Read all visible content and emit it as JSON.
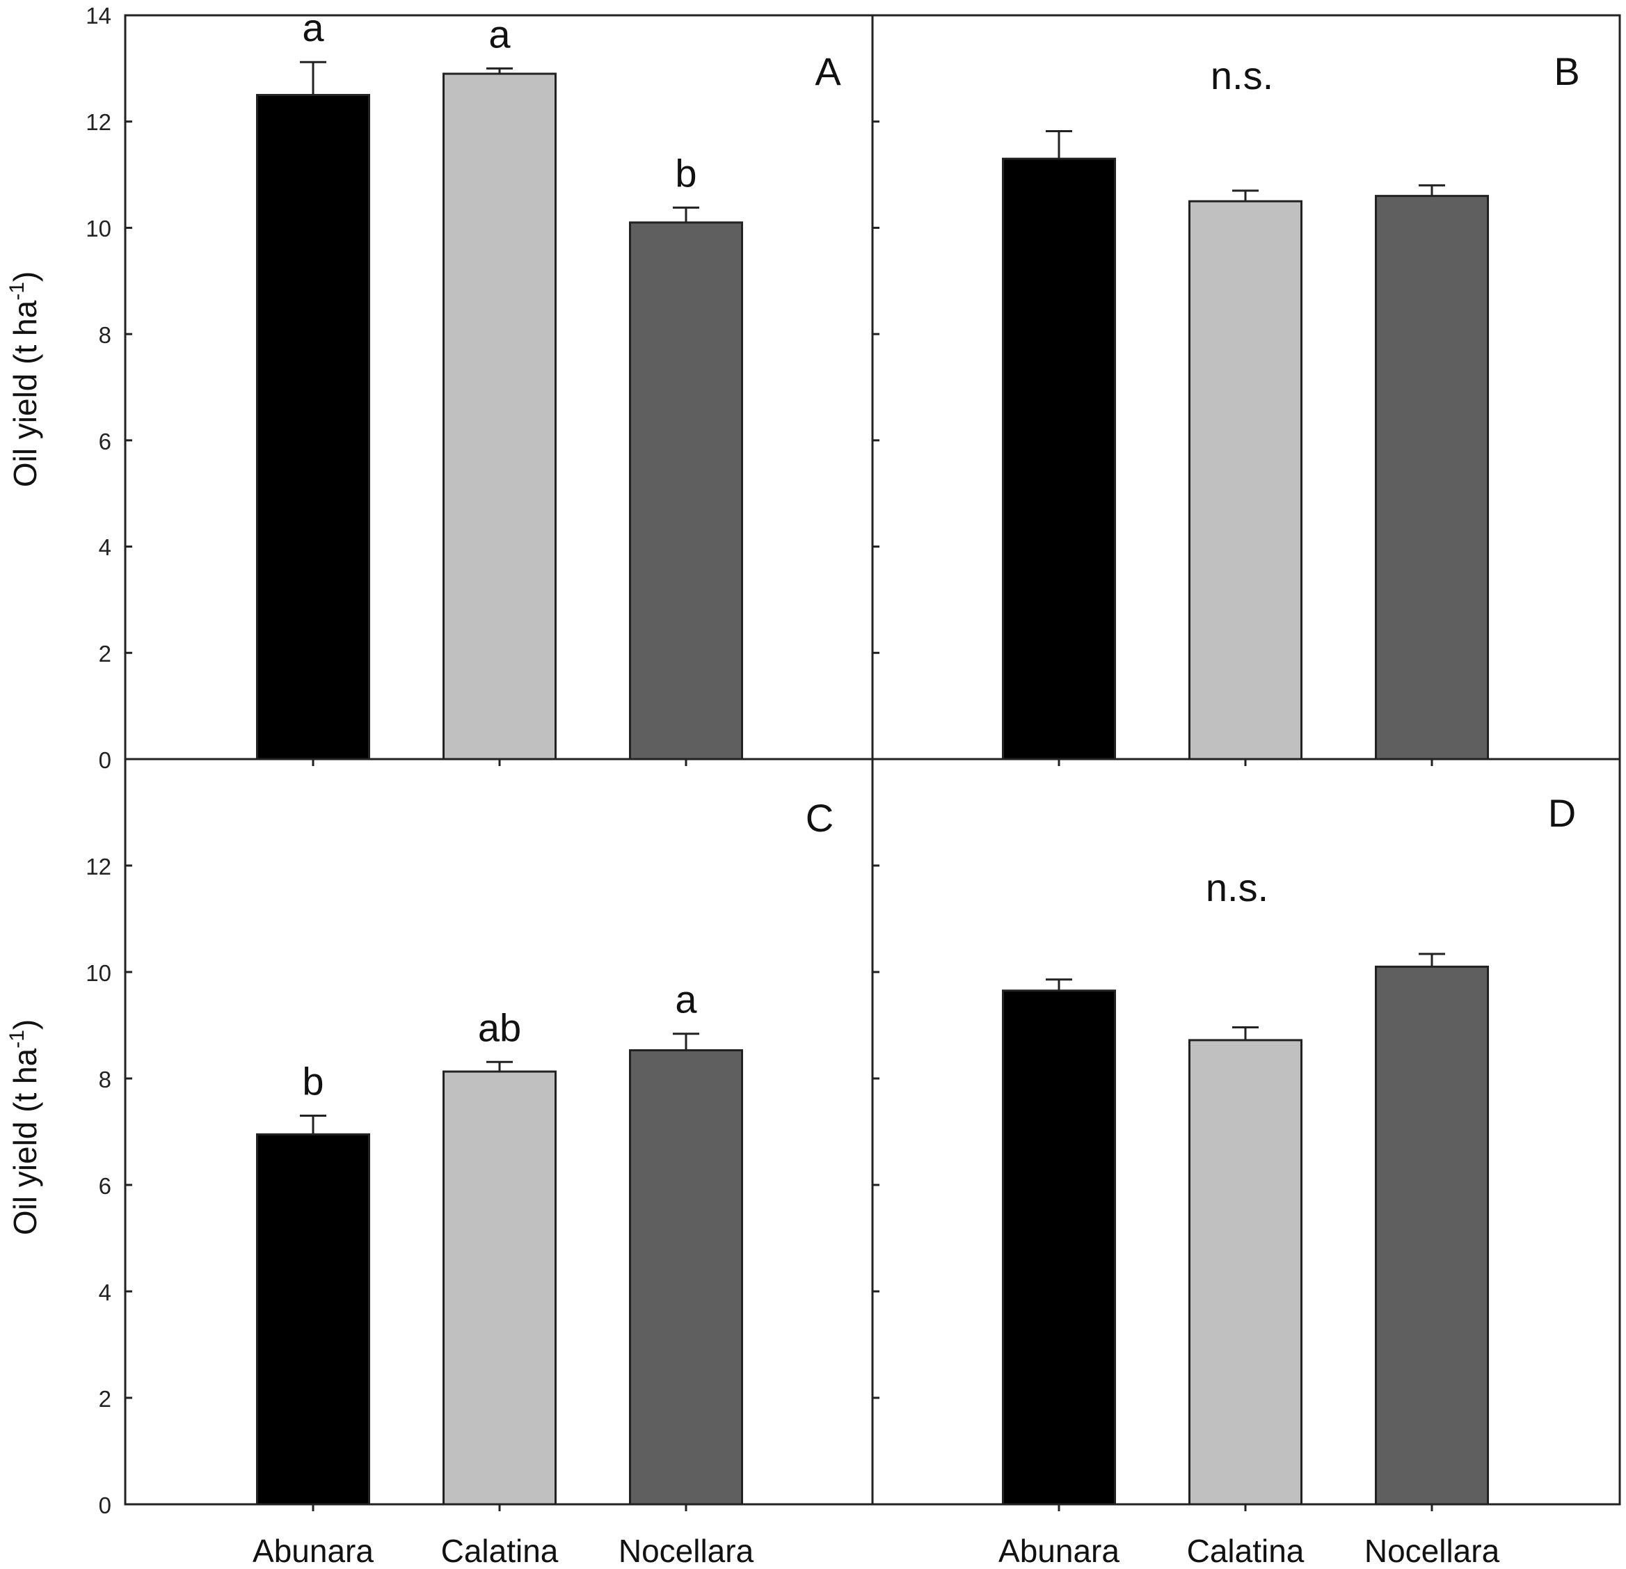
{
  "figure": {
    "ylabel_main": "Oil yield (t ha",
    "ylabel_sup": "-1",
    "ylabel_close": ")",
    "categories": [
      "Abunara",
      "Calatina",
      "Nocellara"
    ],
    "bar_colors": [
      "#000000",
      "#c0c0c0",
      "#5f5f5f"
    ],
    "y_ticks_top": [
      "0",
      "2",
      "4",
      "6",
      "8",
      "10",
      "12",
      "14"
    ],
    "y_ticks_bottom": [
      "0",
      "2",
      "4",
      "6",
      "8",
      "10",
      "12"
    ]
  },
  "chart_data": [
    {
      "type": "bar",
      "panel": "A",
      "categories": [
        "Abunara",
        "Calatina",
        "Nocellara"
      ],
      "values": [
        12.5,
        12.9,
        10.1
      ],
      "errors": [
        0.62,
        0.1,
        0.28
      ],
      "sig_labels": [
        "a",
        "a",
        "b"
      ],
      "note": "",
      "ylabel": "Oil yield (t ha-1)",
      "ylim": [
        0,
        14
      ]
    },
    {
      "type": "bar",
      "panel": "B",
      "categories": [
        "Abunara",
        "Calatina",
        "Nocellara"
      ],
      "values": [
        11.3,
        10.5,
        10.6
      ],
      "errors": [
        0.52,
        0.2,
        0.2
      ],
      "sig_labels": [
        "",
        "",
        ""
      ],
      "note": "n.s.",
      "ylabel": "",
      "ylim": [
        0,
        14
      ]
    },
    {
      "type": "bar",
      "panel": "C",
      "categories": [
        "Abunara",
        "Calatina",
        "Nocellara"
      ],
      "values": [
        6.95,
        8.13,
        8.53
      ],
      "errors": [
        0.35,
        0.18,
        0.31
      ],
      "sig_labels": [
        "b",
        "ab",
        "a"
      ],
      "note": "",
      "ylabel": "Oil yield (t ha-1)",
      "ylim": [
        0,
        14
      ]
    },
    {
      "type": "bar",
      "panel": "D",
      "categories": [
        "Abunara",
        "Calatina",
        "Nocellara"
      ],
      "values": [
        9.65,
        8.72,
        10.1
      ],
      "errors": [
        0.21,
        0.24,
        0.24
      ],
      "sig_labels": [
        "",
        "",
        ""
      ],
      "note": "n.s.",
      "ylabel": "",
      "ylim": [
        0,
        14
      ]
    }
  ]
}
